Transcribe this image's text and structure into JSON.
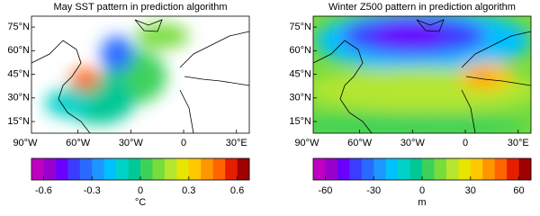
{
  "panels": [
    {
      "title": "May SST pattern in prediction algorithm",
      "latlim": [
        7.6,
        81.9
      ],
      "lonlim": [
        -86.4,
        37.3
      ],
      "lat_ticks": [
        {
          "value": 75,
          "label": "75°N"
        },
        {
          "value": 60,
          "label": "60°N"
        },
        {
          "value": 45,
          "label": "45°N"
        },
        {
          "value": 30,
          "label": "30°N"
        },
        {
          "value": 15,
          "label": "15°N"
        }
      ],
      "lon_ticks": [
        {
          "value": -90,
          "label": "90°W"
        },
        {
          "value": -60,
          "label": "60°W"
        },
        {
          "value": -30,
          "label": "30°W"
        },
        0,
        {
          "value": 30,
          "label": "30°E"
        }
      ],
      "colorbar": {
        "lim": [
          -0.675,
          0.675
        ],
        "ticks": [
          -0.6,
          -0.3,
          0,
          0.3,
          0.6
        ],
        "unit": "°C"
      }
    },
    {
      "title": "Winter Z500 pattern in prediction algorithm",
      "latlim": [
        7.6,
        81.9
      ],
      "lonlim": [
        -86.4,
        37.3
      ],
      "lat_ticks": [
        {
          "value": 75,
          "label": "75°N"
        },
        {
          "value": 60,
          "label": "60°N"
        },
        {
          "value": 45,
          "label": "45°N"
        },
        {
          "value": 30,
          "label": "30°N"
        },
        {
          "value": 15,
          "label": "15°N"
        }
      ],
      "lon_ticks": [
        {
          "value": -90,
          "label": "90°W"
        },
        {
          "value": -60,
          "label": "60°W"
        },
        {
          "value": -30,
          "label": "30°W"
        },
        0,
        {
          "value": 30,
          "label": "30°E"
        }
      ],
      "colorbar": {
        "lim": [
          -67.5,
          67.5
        ],
        "ticks": [
          -60,
          -30,
          0,
          30,
          60
        ],
        "unit": "m"
      }
    }
  ],
  "colors": [
    "#c000c0",
    "#9900cc",
    "#6a00ff",
    "#3c3cff",
    "#2a6aff",
    "#1e96ff",
    "#00c0ff",
    "#00d2c8",
    "#00c896",
    "#3cd25a",
    "#78dc3c",
    "#b4e632",
    "#e6e600",
    "#ffc800",
    "#ff9600",
    "#ff6400",
    "#e61e00",
    "#a00000"
  ]
}
